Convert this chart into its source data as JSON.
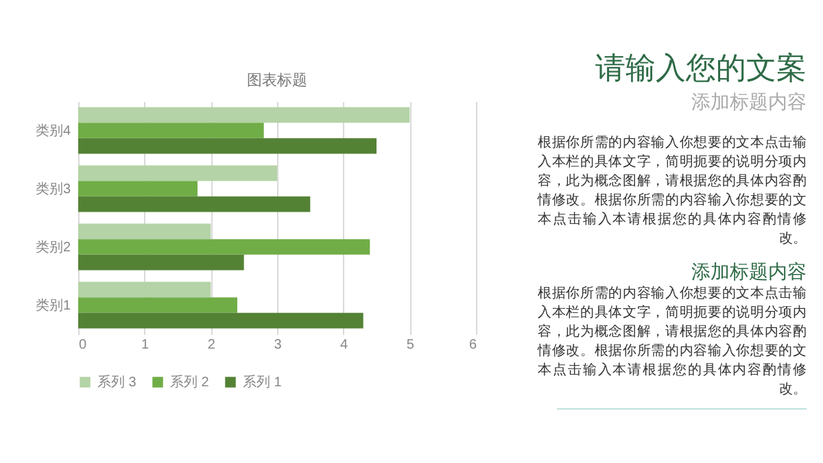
{
  "chart_data": [
    {
      "type": "bar",
      "orientation": "horizontal",
      "title": "图表标题",
      "categories": [
        "类别4",
        "类别3",
        "类别2",
        "类别1"
      ],
      "series": [
        {
          "name": "系列 3",
          "color": "#b4d3a6",
          "values": [
            5,
            3,
            2,
            2
          ]
        },
        {
          "name": "系列 2",
          "color": "#70ad47",
          "values": [
            2.8,
            1.8,
            4.4,
            2.4
          ]
        },
        {
          "name": "系列 1",
          "color": "#548235",
          "values": [
            4.5,
            3.5,
            2.5,
            4.3
          ]
        }
      ],
      "xlim": [
        0,
        6
      ],
      "xticks": [
        0,
        1,
        2,
        3,
        4,
        5,
        6
      ],
      "grid": "x",
      "legend": "bottom"
    },
    {
      "type": "other",
      "title": "请输入您的文案",
      "subtitle": "添加标题内容",
      "annotations": [
        "根据你所需的内容输入你想要的文本点击输入本栏的具体文字，简明扼要的说明分项内容，此为概念图解，请根据您的具体内容酌情修改。根据你所需的内容输入你想要的文本点击输入本请根据您的具体内容酌情修改。",
        "添加标题内容",
        "根据你所需的内容输入你想要的文本点击输入本栏的具体文字，简明扼要的说明分项内容，此为概念图解，请根据您的具体内容酌情修改。根据你所需的内容输入你想要的文本点击输入本请根据您的具体内容酌情修改。"
      ]
    }
  ]
}
